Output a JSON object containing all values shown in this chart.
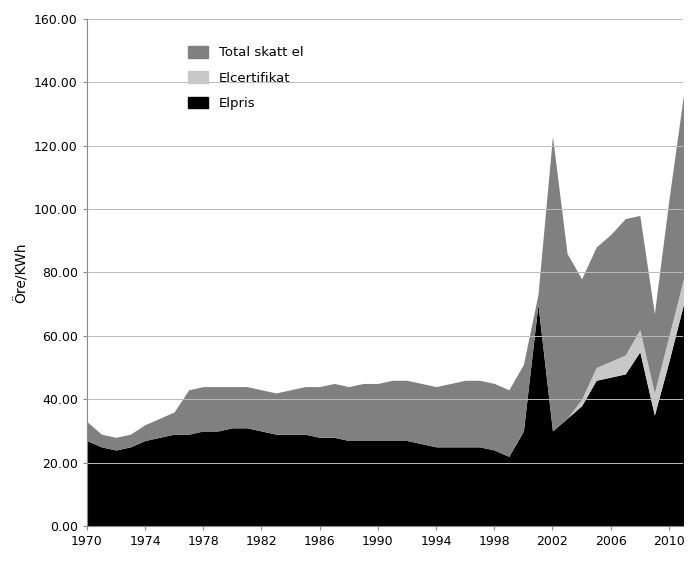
{
  "years": [
    1970,
    1971,
    1972,
    1973,
    1974,
    1975,
    1976,
    1977,
    1978,
    1979,
    1980,
    1981,
    1982,
    1983,
    1984,
    1985,
    1986,
    1987,
    1988,
    1989,
    1990,
    1991,
    1992,
    1993,
    1994,
    1995,
    1996,
    1997,
    1998,
    1999,
    2000,
    2001,
    2002,
    2003,
    2004,
    2005,
    2006,
    2007,
    2008,
    2009,
    2010,
    2011
  ],
  "elpris": [
    27,
    25,
    24,
    25,
    27,
    28,
    29,
    29,
    30,
    30,
    31,
    31,
    30,
    29,
    29,
    29,
    28,
    28,
    27,
    27,
    27,
    27,
    27,
    26,
    25,
    25,
    25,
    25,
    24,
    22,
    30,
    70,
    30,
    34,
    38,
    46,
    47,
    48,
    55,
    35,
    52,
    70
  ],
  "elcertifikat": [
    0,
    0,
    0,
    0,
    0,
    0,
    0,
    0,
    0,
    0,
    0,
    0,
    0,
    0,
    0,
    0,
    0,
    0,
    0,
    0,
    0,
    0,
    0,
    0,
    0,
    0,
    0,
    0,
    0,
    0,
    0,
    0,
    0,
    0,
    2,
    4,
    5,
    6,
    7,
    7,
    8,
    8
  ],
  "total_skatt_el": [
    6,
    4,
    4,
    4,
    5,
    6,
    7,
    14,
    14,
    14,
    13,
    13,
    13,
    13,
    14,
    15,
    16,
    17,
    17,
    18,
    18,
    19,
    19,
    19,
    19,
    20,
    21,
    21,
    21,
    21,
    21,
    3,
    93,
    52,
    38,
    38,
    40,
    43,
    36,
    25,
    43,
    58
  ],
  "color_elpris": "#000000",
  "color_elcertifikat": "#c8c8c8",
  "color_total_skatt": "#808080",
  "ylabel": "Öre/KWh",
  "ylim": [
    0,
    160
  ],
  "xlim": [
    1970,
    2011
  ],
  "yticks": [
    0.0,
    20.0,
    40.0,
    60.0,
    80.0,
    100.0,
    120.0,
    140.0,
    160.0
  ],
  "xticks": [
    1970,
    1974,
    1978,
    1982,
    1986,
    1990,
    1994,
    1998,
    2002,
    2006,
    2010
  ],
  "legend_labels": [
    "Total skatt el",
    "Elcertifikat",
    "Elpris"
  ],
  "legend_colors": [
    "#808080",
    "#c8c8c8",
    "#000000"
  ],
  "background_color": "#ffffff",
  "grid_color": "#bbbbbb",
  "figsize": [
    7.0,
    5.62
  ],
  "dpi": 100
}
